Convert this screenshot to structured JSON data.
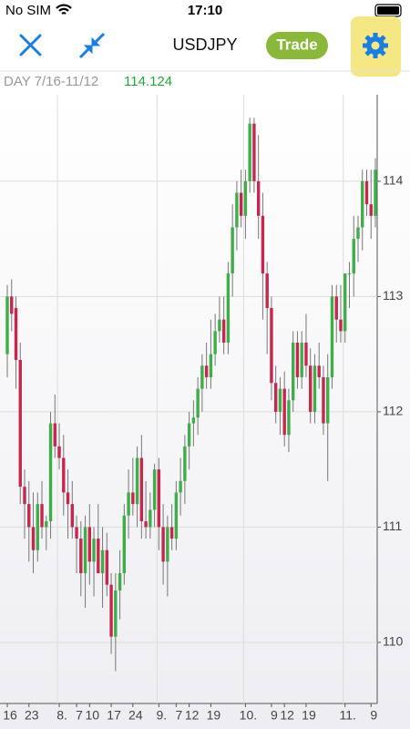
{
  "status_bar": {
    "carrier": "No SIM",
    "time": "17:10"
  },
  "nav": {
    "symbol": "USDJPY",
    "trade_button": "Trade"
  },
  "chart_data": {
    "type": "candlestick",
    "title": "DAY 7/16-11/12",
    "subtitle": 114.124,
    "up_color": "#3fae49",
    "down_color": "#c8264f",
    "grid": true,
    "ylim": [
      109.47,
      114.75
    ],
    "yticks": [
      110,
      111,
      112,
      113,
      114
    ],
    "categories": [
      "16",
      null,
      null,
      null,
      null,
      "23",
      null,
      null,
      null,
      null,
      null,
      null,
      "8.",
      null,
      null,
      null,
      "7",
      null,
      null,
      "10",
      null,
      null,
      null,
      null,
      "17",
      null,
      null,
      null,
      null,
      "24",
      null,
      null,
      null,
      null,
      null,
      "9.",
      null,
      null,
      null,
      "7",
      null,
      null,
      "12",
      null,
      null,
      null,
      null,
      "19",
      null,
      null,
      null,
      null,
      null,
      null,
      null,
      "10.",
      null,
      null,
      null,
      null,
      null,
      "9",
      null,
      null,
      "12",
      null,
      null,
      null,
      null,
      "19",
      null,
      null,
      null,
      null,
      null,
      null,
      null,
      null,
      "11.",
      null,
      null,
      null,
      null,
      null,
      "9",
      null
    ],
    "open": [
      112.5,
      113.0,
      112.9,
      112.45,
      111.35,
      111.2,
      111.0,
      110.8,
      111.2,
      111.0,
      111.05,
      111.9,
      111.7,
      111.6,
      111.3,
      111.2,
      111.0,
      110.9,
      110.6,
      111.0,
      110.7,
      110.9,
      110.6,
      110.8,
      110.5,
      110.05,
      110.45,
      110.6,
      111.1,
      111.3,
      111.2,
      111.6,
      111.05,
      111.0,
      111.15,
      111.5,
      111.0,
      110.7,
      111.0,
      110.9,
      111.3,
      111.4,
      111.7,
      111.9,
      111.95,
      112.2,
      112.4,
      112.3,
      112.5,
      112.7,
      112.8,
      112.6,
      113.2,
      113.6,
      113.9,
      113.7,
      114.0,
      114.5,
      114.0,
      113.7,
      113.2,
      112.9,
      112.25,
      112.0,
      112.2,
      111.8,
      112.1,
      112.6,
      112.3,
      112.6,
      112.4,
      112.0,
      112.4,
      112.3,
      111.9,
      112.3,
      113.0,
      112.8,
      112.7,
      113.2,
      113.2,
      113.5,
      113.6,
      114.0,
      113.8,
      113.7
    ],
    "high": [
      113.1,
      113.15,
      113.0,
      112.6,
      111.5,
      111.4,
      111.3,
      111.3,
      111.4,
      111.1,
      112.0,
      112.15,
      111.9,
      111.8,
      111.5,
      111.4,
      111.1,
      111.05,
      111.1,
      111.2,
      111.0,
      111.2,
      111.0,
      110.95,
      110.6,
      110.6,
      110.8,
      111.2,
      111.5,
      111.6,
      111.7,
      111.8,
      111.4,
      111.3,
      111.55,
      111.6,
      111.2,
      111.1,
      111.2,
      111.4,
      111.6,
      111.8,
      112.0,
      112.1,
      112.3,
      112.5,
      112.6,
      112.8,
      112.85,
      113.0,
      113.0,
      113.3,
      113.8,
      114.0,
      114.1,
      114.1,
      114.55,
      114.55,
      114.4,
      113.9,
      113.3,
      113.0,
      112.4,
      112.3,
      112.35,
      112.2,
      112.7,
      112.7,
      112.7,
      112.85,
      112.55,
      112.5,
      112.6,
      112.4,
      112.5,
      113.1,
      113.1,
      113.1,
      113.2,
      113.3,
      113.7,
      113.7,
      114.1,
      114.1,
      114.1,
      114.2
    ],
    "low": [
      112.3,
      112.7,
      112.2,
      111.2,
      110.9,
      110.7,
      110.6,
      110.7,
      110.9,
      110.8,
      110.9,
      111.6,
      111.5,
      111.1,
      110.9,
      110.9,
      110.6,
      110.4,
      110.3,
      110.5,
      110.4,
      110.6,
      110.3,
      110.4,
      109.9,
      109.75,
      110.2,
      110.5,
      110.9,
      111.1,
      111.0,
      110.9,
      110.9,
      110.9,
      111.0,
      110.8,
      110.5,
      110.4,
      110.8,
      110.8,
      111.1,
      111.2,
      111.5,
      111.7,
      111.8,
      112.0,
      112.2,
      112.2,
      112.4,
      112.6,
      112.5,
      112.5,
      113.0,
      113.4,
      113.6,
      113.5,
      113.9,
      113.9,
      113.5,
      112.8,
      112.5,
      112.1,
      111.9,
      111.8,
      111.7,
      111.65,
      112.0,
      112.2,
      112.2,
      112.3,
      111.9,
      111.9,
      112.2,
      111.8,
      111.4,
      112.2,
      112.6,
      112.6,
      112.6,
      112.9,
      113.0,
      113.3,
      113.4,
      113.7,
      113.5,
      113.6
    ],
    "close": [
      113.0,
      112.85,
      112.45,
      111.35,
      111.2,
      111.0,
      110.8,
      111.2,
      111.0,
      111.05,
      111.9,
      111.7,
      111.6,
      111.3,
      111.2,
      111.0,
      110.9,
      110.6,
      111.0,
      110.7,
      110.9,
      110.6,
      110.8,
      110.5,
      110.05,
      110.45,
      110.6,
      111.1,
      111.3,
      111.2,
      111.6,
      111.05,
      111.0,
      111.15,
      111.5,
      111.0,
      110.7,
      111.0,
      110.9,
      111.3,
      111.4,
      111.7,
      111.9,
      111.95,
      112.2,
      112.4,
      112.3,
      112.5,
      112.7,
      112.8,
      112.6,
      113.2,
      113.6,
      113.9,
      113.7,
      114.0,
      114.5,
      114.0,
      113.7,
      113.2,
      112.9,
      112.25,
      112.0,
      112.2,
      111.8,
      112.1,
      112.6,
      112.3,
      112.6,
      112.4,
      112.0,
      112.4,
      112.3,
      111.9,
      112.3,
      113.0,
      112.8,
      112.7,
      113.2,
      113.2,
      113.5,
      113.6,
      114.0,
      113.8,
      113.7,
      114.1
    ]
  }
}
